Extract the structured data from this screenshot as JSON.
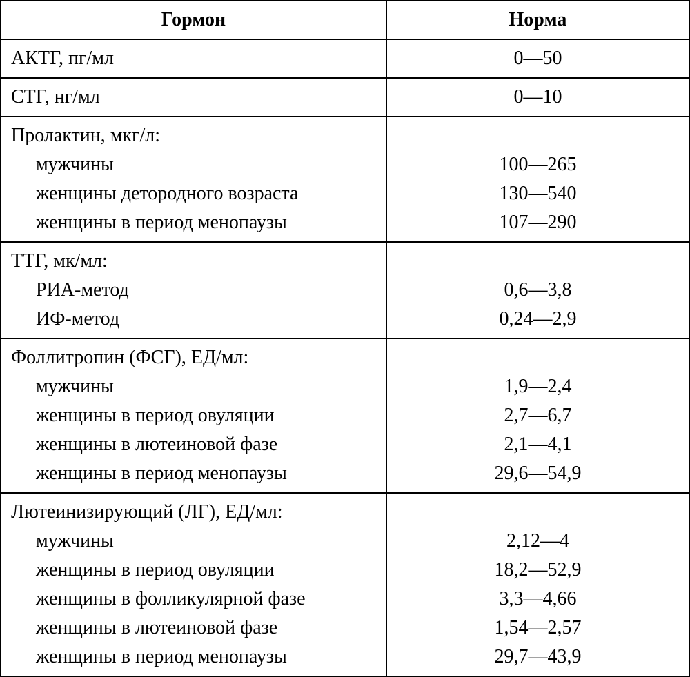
{
  "table": {
    "headers": {
      "hormone": "Гормон",
      "norm": "Норма"
    },
    "rows": [
      {
        "type": "simple",
        "label": "АКТГ, пг/мл",
        "value": "0—50"
      },
      {
        "type": "simple",
        "label": "СТГ, нг/мл",
        "value": "0—10"
      },
      {
        "type": "group",
        "header": "Пролактин, мкг/л:",
        "items": [
          {
            "label": "мужчины",
            "value": "100—265"
          },
          {
            "label": "женщины детородного возраста",
            "value": "130—540"
          },
          {
            "label": "женщины в период менопаузы",
            "value": "107—290"
          }
        ]
      },
      {
        "type": "group",
        "header": "ТТГ, мк/мл:",
        "items": [
          {
            "label": "РИА-метод",
            "value": "0,6—3,8"
          },
          {
            "label": "ИФ-метод",
            "value": "0,24—2,9"
          }
        ]
      },
      {
        "type": "group",
        "header": "Фоллитропин (ФСГ), ЕД/мл:",
        "items": [
          {
            "label": "мужчины",
            "value": "1,9—2,4"
          },
          {
            "label": "женщины в период овуляции",
            "value": "2,7—6,7"
          },
          {
            "label": "женщины в лютеиновой фазе",
            "value": "2,1—4,1"
          },
          {
            "label": "женщины в период менопаузы",
            "value": "29,6—54,9"
          }
        ]
      },
      {
        "type": "group",
        "header": "Лютеинизирующий (ЛГ), ЕД/мл:",
        "items": [
          {
            "label": "мужчины",
            "value": "2,12—4"
          },
          {
            "label": "женщины в период овуляции",
            "value": "18,2—52,9"
          },
          {
            "label": "женщины в фолликулярной фазе",
            "value": "3,3—4,66"
          },
          {
            "label": "женщины в лютеиновой фазе",
            "value": "1,54—2,57"
          },
          {
            "label": "женщины в период менопаузы",
            "value": "29,7—43,9"
          }
        ]
      }
    ]
  }
}
